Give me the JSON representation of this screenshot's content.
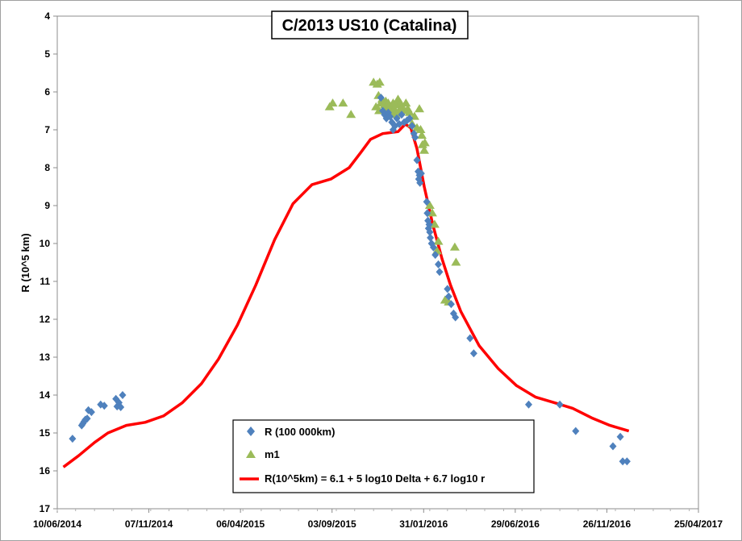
{
  "chart_data": {
    "type": "scatter",
    "title": "C/2013 US10 (Catalina)",
    "ylabel": "R (10^5 km)",
    "xlabel": "",
    "xlim": [
      "2014-06-10",
      "2017-04-25"
    ],
    "ylim": [
      4,
      17
    ],
    "y_inverted": true,
    "grid": false,
    "legend_position": "bottom-center",
    "x_ticks": [
      "10/06/2014",
      "07/11/2014",
      "06/04/2015",
      "03/09/2015",
      "31/01/2016",
      "29/06/2016",
      "26/11/2016",
      "25/04/2017"
    ],
    "y_ticks": [
      4,
      5,
      6,
      7,
      8,
      9,
      10,
      11,
      12,
      13,
      14,
      15,
      16,
      17
    ],
    "colors": {
      "R": "#4f81bd",
      "m1": "#9bbb59",
      "model": "#ff0000"
    },
    "series": [
      {
        "name": "R (100 000km)",
        "marker": "diamond",
        "points": [
          [
            "2014-07-05",
            15.15
          ],
          [
            "2014-07-20",
            14.8
          ],
          [
            "2014-07-22",
            14.75
          ],
          [
            "2014-07-24",
            14.7
          ],
          [
            "2014-07-26",
            14.65
          ],
          [
            "2014-07-29",
            14.62
          ],
          [
            "2014-07-31",
            14.4
          ],
          [
            "2014-08-05",
            14.45
          ],
          [
            "2014-08-20",
            14.25
          ],
          [
            "2014-08-26",
            14.28
          ],
          [
            "2014-09-14",
            14.1
          ],
          [
            "2014-09-16",
            14.3
          ],
          [
            "2014-09-19",
            14.2
          ],
          [
            "2014-09-25",
            14.0
          ],
          [
            "2014-09-22",
            14.32
          ],
          [
            "2015-11-22",
            6.15
          ],
          [
            "2015-11-25",
            6.5
          ],
          [
            "2015-11-28",
            6.6
          ],
          [
            "2015-12-01",
            6.7
          ],
          [
            "2015-12-04",
            6.55
          ],
          [
            "2015-12-07",
            6.65
          ],
          [
            "2015-12-10",
            6.8
          ],
          [
            "2015-12-12",
            7.0
          ],
          [
            "2015-12-15",
            6.9
          ],
          [
            "2015-12-18",
            6.7
          ],
          [
            "2015-12-22",
            6.85
          ],
          [
            "2015-12-26",
            6.6
          ],
          [
            "2015-12-30",
            6.8
          ],
          [
            "2016-01-04",
            6.75
          ],
          [
            "2016-01-08",
            6.7
          ],
          [
            "2016-01-12",
            6.9
          ],
          [
            "2016-01-15",
            7.1
          ],
          [
            "2016-01-17",
            7.2
          ],
          [
            "2016-01-20",
            7.8
          ],
          [
            "2016-01-22",
            8.1
          ],
          [
            "2016-01-23",
            8.3
          ],
          [
            "2016-01-24",
            8.2
          ],
          [
            "2016-01-25",
            8.4
          ],
          [
            "2016-01-27",
            8.15
          ],
          [
            "2016-02-05",
            8.9
          ],
          [
            "2016-02-06",
            9.2
          ],
          [
            "2016-02-07",
            9.4
          ],
          [
            "2016-02-08",
            9.6
          ],
          [
            "2016-02-09",
            9.5
          ],
          [
            "2016-02-10",
            9.7
          ],
          [
            "2016-02-11",
            9.85
          ],
          [
            "2016-02-13",
            10.0
          ],
          [
            "2016-02-16",
            10.1
          ],
          [
            "2016-02-19",
            10.3
          ],
          [
            "2016-02-24",
            10.55
          ],
          [
            "2016-02-26",
            10.75
          ],
          [
            "2016-03-10",
            11.2
          ],
          [
            "2016-03-12",
            11.4
          ],
          [
            "2016-03-16",
            11.6
          ],
          [
            "2016-03-20",
            11.85
          ],
          [
            "2016-03-23",
            11.95
          ],
          [
            "2016-04-16",
            12.5
          ],
          [
            "2016-04-22",
            12.9
          ],
          [
            "2016-07-21",
            14.25
          ],
          [
            "2016-09-10",
            14.25
          ],
          [
            "2016-10-06",
            14.95
          ],
          [
            "2016-12-06",
            15.35
          ],
          [
            "2016-12-18",
            15.1
          ],
          [
            "2016-12-22",
            15.75
          ],
          [
            "2016-12-29",
            15.75
          ]
        ]
      },
      {
        "name": "m1",
        "marker": "triangle",
        "points": [
          [
            "2015-08-30",
            6.4
          ],
          [
            "2015-09-04",
            6.3
          ],
          [
            "2015-09-21",
            6.3
          ],
          [
            "2015-10-04",
            6.6
          ],
          [
            "2015-11-10",
            5.75
          ],
          [
            "2015-11-14",
            6.4
          ],
          [
            "2015-11-16",
            5.8
          ],
          [
            "2015-11-18",
            6.1
          ],
          [
            "2015-11-19",
            6.5
          ],
          [
            "2015-11-20",
            5.75
          ],
          [
            "2015-11-22",
            6.3
          ],
          [
            "2015-11-24",
            6.2
          ],
          [
            "2015-11-26",
            6.5
          ],
          [
            "2015-11-28",
            6.35
          ],
          [
            "2015-11-30",
            6.25
          ],
          [
            "2015-12-02",
            6.45
          ],
          [
            "2015-12-04",
            6.3
          ],
          [
            "2015-12-06",
            6.5
          ],
          [
            "2015-12-08",
            6.4
          ],
          [
            "2015-12-10",
            6.55
          ],
          [
            "2015-12-12",
            6.3
          ],
          [
            "2015-12-14",
            6.45
          ],
          [
            "2015-12-16",
            6.6
          ],
          [
            "2015-12-18",
            6.35
          ],
          [
            "2015-12-20",
            6.2
          ],
          [
            "2015-12-22",
            6.5
          ],
          [
            "2015-12-24",
            6.3
          ],
          [
            "2015-12-27",
            6.4
          ],
          [
            "2015-12-30",
            6.5
          ],
          [
            "2016-01-02",
            6.3
          ],
          [
            "2016-01-05",
            6.45
          ],
          [
            "2016-01-08",
            6.55
          ],
          [
            "2016-01-12",
            6.85
          ],
          [
            "2016-01-16",
            6.65
          ],
          [
            "2016-01-20",
            6.95
          ],
          [
            "2016-01-24",
            6.45
          ],
          [
            "2016-01-26",
            7.0
          ],
          [
            "2016-01-28",
            7.15
          ],
          [
            "2016-01-29",
            7.4
          ],
          [
            "2016-02-01",
            7.55
          ],
          [
            "2016-02-02",
            7.35
          ],
          [
            "2016-02-10",
            9.0
          ],
          [
            "2016-02-14",
            9.2
          ],
          [
            "2016-02-18",
            9.5
          ],
          [
            "2016-02-22",
            10.2
          ],
          [
            "2016-02-24",
            9.95
          ],
          [
            "2016-03-06",
            11.5
          ],
          [
            "2016-03-12",
            11.55
          ],
          [
            "2016-03-22",
            10.1
          ],
          [
            "2016-03-24",
            10.5
          ]
        ]
      },
      {
        "name": "R(10^5km) = 6.1 + 5 log10 Delta + 6.7  log10 r",
        "marker": "line",
        "points": [
          [
            "2014-06-20",
            15.9
          ],
          [
            "2014-07-15",
            15.6
          ],
          [
            "2014-08-10",
            15.25
          ],
          [
            "2014-09-01",
            15.0
          ],
          [
            "2014-10-01",
            14.8
          ],
          [
            "2014-11-01",
            14.72
          ],
          [
            "2014-12-01",
            14.55
          ],
          [
            "2015-01-01",
            14.2
          ],
          [
            "2015-02-01",
            13.7
          ],
          [
            "2015-03-01",
            13.05
          ],
          [
            "2015-04-01",
            12.15
          ],
          [
            "2015-05-01",
            11.1
          ],
          [
            "2015-06-01",
            9.9
          ],
          [
            "2015-07-01",
            8.95
          ],
          [
            "2015-08-01",
            8.45
          ],
          [
            "2015-09-01",
            8.3
          ],
          [
            "2015-10-01",
            8.0
          ],
          [
            "2015-10-20",
            7.6
          ],
          [
            "2015-11-05",
            7.25
          ],
          [
            "2015-11-25",
            7.1
          ],
          [
            "2015-12-20",
            7.05
          ],
          [
            "2016-01-01",
            6.85
          ],
          [
            "2016-01-10",
            6.95
          ],
          [
            "2016-01-20",
            7.5
          ],
          [
            "2016-02-01",
            8.5
          ],
          [
            "2016-02-15",
            9.5
          ],
          [
            "2016-03-01",
            10.4
          ],
          [
            "2016-03-15",
            11.1
          ],
          [
            "2016-04-01",
            11.8
          ],
          [
            "2016-05-01",
            12.7
          ],
          [
            "2016-06-01",
            13.3
          ],
          [
            "2016-07-01",
            13.75
          ],
          [
            "2016-08-01",
            14.05
          ],
          [
            "2016-09-01",
            14.2
          ],
          [
            "2016-10-01",
            14.35
          ],
          [
            "2016-11-01",
            14.6
          ],
          [
            "2016-12-01",
            14.8
          ],
          [
            "2017-01-01",
            14.95
          ]
        ]
      }
    ]
  }
}
